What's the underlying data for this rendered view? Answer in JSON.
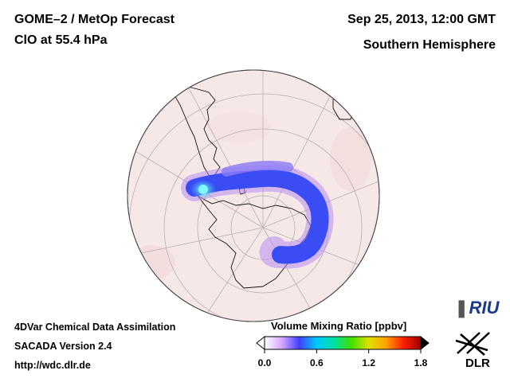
{
  "header": {
    "title_line1": "GOME–2 / MetOp Forecast",
    "title_line2": "ClO at 55.4 hPa",
    "date": "Sep 25, 2013, 12:00 GMT",
    "region": "Southern Hemisphere"
  },
  "footer": {
    "line1": "4DVar Chemical Data Assimilation",
    "line2": "SACADA Version 2.4",
    "url": "http://wdc.dlr.de"
  },
  "colorbar": {
    "title": "Volume Mixing Ratio [ppbv]",
    "min": 0.0,
    "max": 1.8,
    "ticks": [
      "0.0",
      "0.6",
      "1.2",
      "1.8"
    ],
    "colors": [
      "#ffffff",
      "#d6a6ff",
      "#4040ff",
      "#00c8ff",
      "#00e0a0",
      "#40e000",
      "#e0e000",
      "#ffa000",
      "#ff2000",
      "#a00000"
    ]
  },
  "logos": {
    "riu": "RIU",
    "dlr": "DLR"
  },
  "map_colors": {
    "globe_fill": "#f7e8e8",
    "plume_main": "#3a4df5",
    "plume_edge": "#b48cf0",
    "plume_peak": "#3ee0e8"
  }
}
